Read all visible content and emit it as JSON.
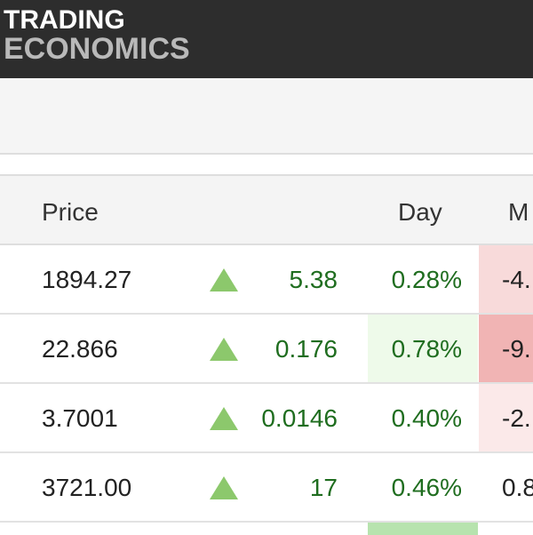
{
  "brand": {
    "line1": "TRADING",
    "line2": "ECONOMICS"
  },
  "table": {
    "headers": {
      "price": "Price",
      "day": "Day",
      "month": "M"
    },
    "rows": [
      {
        "price": "1894.27",
        "change": "5.38",
        "pct": "0.28%",
        "month": "-4.",
        "pct_bg": "#ffffff",
        "month_bg": "#f8dada",
        "trend": "up"
      },
      {
        "price": "22.866",
        "change": "0.176",
        "pct": "0.78%",
        "month": "-9.",
        "pct_bg": "#eefaea",
        "month_bg": "#f1b4b4",
        "trend": "up"
      },
      {
        "price": "3.7001",
        "change": "0.0146",
        "pct": "0.40%",
        "month": "-2.",
        "pct_bg": "#ffffff",
        "month_bg": "#fbe9e9",
        "trend": "up"
      },
      {
        "price": "3721.00",
        "change": "17",
        "pct": "0.46%",
        "month": "0.8",
        "pct_bg": "#ffffff",
        "month_bg": "#ffffff",
        "trend": "up"
      }
    ]
  },
  "colors": {
    "up_arrow": "#8cc86c",
    "positive_text": "#1f6d1f",
    "header_bg": "#2d2d2d"
  },
  "icons": {
    "trend_up": "triangle-up-icon"
  }
}
